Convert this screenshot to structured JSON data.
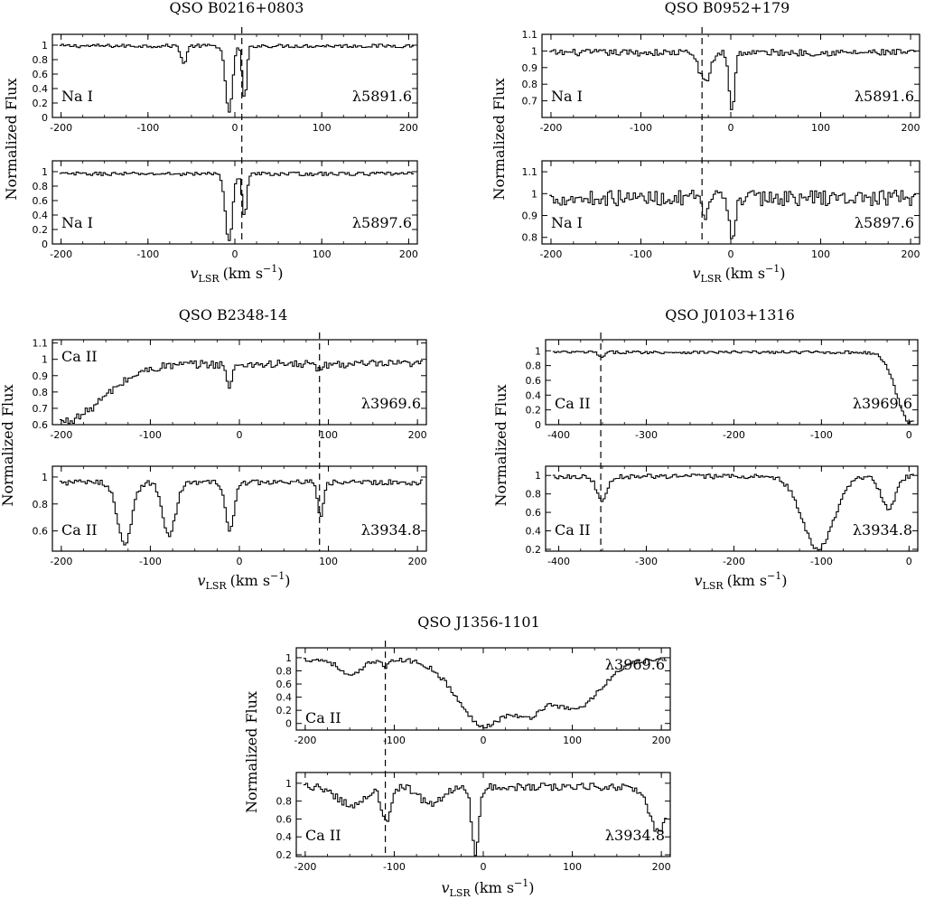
{
  "figure": {
    "ylabel": "Normalized Flux",
    "xlabel_main": "v",
    "xlabel_sub": "LSR",
    "xlabel_units": "(km s",
    "xlabel_exp": "−1",
    "xlabel_close": ")"
  },
  "chart_data": [
    {
      "type": "line",
      "title": "QSO B0216+0803",
      "marker_velocity": 8,
      "panels": [
        {
          "ion": "Na I",
          "line": "λ5891.6",
          "xlim": [
            -210,
            210
          ],
          "ylim": [
            0,
            1.15
          ],
          "xticks": [
            -200,
            -100,
            0,
            100,
            200
          ],
          "yticks": [
            0,
            0.2,
            0.4,
            0.6,
            0.8,
            1
          ],
          "continuum": 0.99,
          "noise": 0.025,
          "features": [
            [
              -60,
              0.25,
              3
            ],
            [
              -8,
              0.92,
              4
            ],
            [
              10,
              0.75,
              2.5
            ]
          ]
        },
        {
          "ion": "Na I",
          "line": "λ5897.6",
          "xlim": [
            -210,
            210
          ],
          "ylim": [
            0,
            1.15
          ],
          "xticks": [
            -200,
            -100,
            0,
            100,
            200
          ],
          "yticks": [
            0,
            0.2,
            0.4,
            0.6,
            0.8,
            1
          ],
          "continuum": 0.97,
          "noise": 0.025,
          "features": [
            [
              -8,
              0.95,
              4
            ],
            [
              10,
              0.6,
              2.5
            ]
          ]
        }
      ]
    },
    {
      "type": "line",
      "title": "QSO B0952+179",
      "marker_velocity": -32,
      "panels": [
        {
          "ion": "Na I",
          "line": "λ5891.6",
          "xlim": [
            -210,
            210
          ],
          "ylim": [
            0.6,
            1.1
          ],
          "xticks": [
            -200,
            -100,
            0,
            100,
            200
          ],
          "yticks": [
            0.7,
            0.8,
            0.9,
            1,
            1.1
          ],
          "continuum": 0.99,
          "noise": 0.02,
          "features": [
            [
              -30,
              0.18,
              6
            ],
            [
              0,
              0.35,
              3
            ]
          ]
        },
        {
          "ion": "Na I",
          "line": "λ5897.6",
          "xlim": [
            -210,
            210
          ],
          "ylim": [
            0.77,
            1.15
          ],
          "xticks": [
            -200,
            -100,
            0,
            100,
            200
          ],
          "yticks": [
            0.8,
            0.9,
            1,
            1.1
          ],
          "continuum": 0.98,
          "noise": 0.035,
          "features": [
            [
              -30,
              0.12,
              3
            ],
            [
              0,
              0.2,
              3
            ]
          ]
        }
      ]
    },
    {
      "type": "line",
      "title": "QSO B2348-14",
      "marker_velocity": 90,
      "panels": [
        {
          "ion": "Ca II",
          "line": "λ3969.6",
          "xlim": [
            -210,
            210
          ],
          "ylim": [
            0.6,
            1.12
          ],
          "xticks": [
            -200,
            -100,
            0,
            100,
            200
          ],
          "yticks": [
            0.6,
            0.7,
            0.8,
            0.9,
            1,
            1.1
          ],
          "continuum": 0.97,
          "noise": 0.025,
          "features": [
            [
              -200,
              0.35,
              45
            ],
            [
              -12,
              0.15,
              3
            ],
            [
              90,
              0.05,
              3
            ]
          ]
        },
        {
          "ion": "Ca II",
          "line": "λ3934.8",
          "xlim": [
            -210,
            210
          ],
          "ylim": [
            0.45,
            1.08
          ],
          "xticks": [
            -200,
            -100,
            0,
            100,
            200
          ],
          "yticks": [
            0.6,
            0.8,
            1
          ],
          "continuum": 0.96,
          "noise": 0.02,
          "features": [
            [
              -130,
              0.45,
              8
            ],
            [
              -80,
              0.4,
              7
            ],
            [
              -12,
              0.35,
              5
            ],
            [
              90,
              0.28,
              3
            ]
          ]
        }
      ]
    },
    {
      "type": "line",
      "title": "QSO J0103+1316",
      "marker_velocity": -352,
      "panels": [
        {
          "ion": "Ca II",
          "line": "λ3969.6",
          "xlim": [
            -415,
            10
          ],
          "ylim": [
            0,
            1.15
          ],
          "xticks": [
            -400,
            -300,
            -200,
            -100,
            0
          ],
          "yticks": [
            0,
            0.2,
            0.4,
            0.6,
            0.8,
            1
          ],
          "continuum": 0.98,
          "noise": 0.02,
          "features": [
            [
              -352,
              0.08,
              3
            ],
            [
              0,
              0.95,
              15
            ]
          ]
        },
        {
          "ion": "Ca II",
          "line": "λ3934.8",
          "xlim": [
            -415,
            10
          ],
          "ylim": [
            0.18,
            1.1
          ],
          "xticks": [
            -400,
            -300,
            -200,
            -100,
            0
          ],
          "yticks": [
            0.2,
            0.4,
            0.6,
            0.8,
            1
          ],
          "continuum": 0.99,
          "noise": 0.025,
          "features": [
            [
              -352,
              0.25,
              6
            ],
            [
              -105,
              0.78,
              18
            ],
            [
              -25,
              0.35,
              8
            ]
          ]
        }
      ]
    },
    {
      "type": "line",
      "title": "QSO J1356-1101",
      "marker_velocity": -110,
      "panels": [
        {
          "ion": "Ca II",
          "line": "λ3969.6",
          "xlim": [
            -210,
            210
          ],
          "ylim": [
            -0.1,
            1.15
          ],
          "xticks": [
            -200,
            -100,
            0,
            100,
            200
          ],
          "yticks": [
            0,
            0.2,
            0.4,
            0.6,
            0.8,
            1
          ],
          "continuum": 0.97,
          "noise": 0.035,
          "features": [
            [
              -150,
              0.25,
              12
            ],
            [
              -110,
              0.1,
              4
            ],
            [
              0,
              1.0,
              30
            ],
            [
              50,
              0.45,
              15
            ],
            [
              100,
              0.75,
              30
            ]
          ]
        },
        {
          "ion": "Ca II",
          "line": "λ3934.8",
          "xlim": [
            -210,
            210
          ],
          "ylim": [
            0.18,
            1.12
          ],
          "xticks": [
            -200,
            -100,
            0,
            100,
            200
          ],
          "yticks": [
            0.2,
            0.4,
            0.6,
            0.8,
            1
          ],
          "continuum": 0.96,
          "noise": 0.04,
          "features": [
            [
              -150,
              0.2,
              15
            ],
            [
              -110,
              0.4,
              5
            ],
            [
              -60,
              0.2,
              12
            ],
            [
              -10,
              0.75,
              4
            ],
            [
              195,
              0.5,
              10
            ]
          ]
        }
      ]
    }
  ]
}
